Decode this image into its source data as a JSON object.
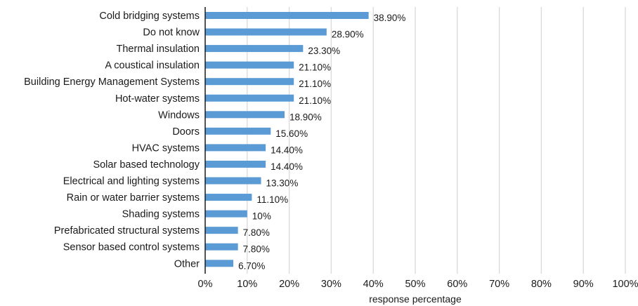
{
  "chart_data": {
    "type": "bar",
    "orientation": "horizontal",
    "categories": [
      "Cold bridging systems",
      "Do not know",
      "Thermal insulation",
      "A coustical insulation",
      "Building Energy Management Systems",
      "Hot-water systems",
      "Windows",
      "Doors",
      "HVAC systems",
      "Solar based technology",
      "Electrical and lighting systems",
      "Rain or water barrier systems",
      "Shading systems",
      "Prefabricated structural systems",
      "Sensor based control systems",
      "Other"
    ],
    "values": [
      38.9,
      28.9,
      23.3,
      21.1,
      21.1,
      21.1,
      18.9,
      15.6,
      14.4,
      14.4,
      13.3,
      11.1,
      10,
      7.8,
      7.8,
      6.7
    ],
    "data_labels": [
      "38.90%",
      "28.90%",
      "23.30%",
      "21.10%",
      "21.10%",
      "21.10%",
      "18.90%",
      "15.60%",
      "14.40%",
      "14.40%",
      "13.30%",
      "11.10%",
      "10%",
      "7.80%",
      "7.80%",
      "6.70%"
    ],
    "title": "",
    "xlabel": "response percentage",
    "ylabel": "",
    "xlim": [
      0,
      100
    ],
    "xticks": [
      "0%",
      "10%",
      "20%",
      "30%",
      "40%",
      "50%",
      "60%",
      "70%",
      "80%",
      "90%",
      "100%"
    ],
    "grid": "vertical",
    "legend": "none",
    "bar_color": "#5b9bd5",
    "grid_color": "#d9d9d9"
  }
}
